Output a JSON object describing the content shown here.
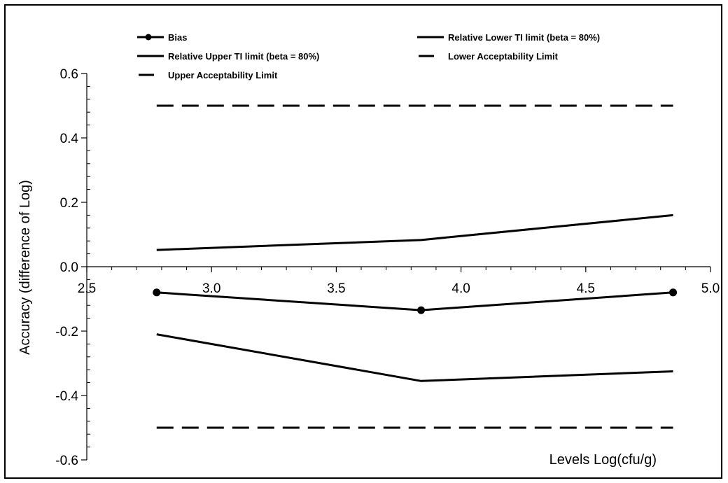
{
  "chart_data": {
    "type": "line",
    "title": "",
    "xlabel": "Levels Log(cfu/g)",
    "ylabel": "Accuracy (difference of  Log)",
    "xlim": [
      2.5,
      5.0
    ],
    "ylim": [
      -0.6,
      0.6
    ],
    "x_ticks": [
      "2.5",
      "3.0",
      "3.5",
      "4.0",
      "4.5",
      "5.0"
    ],
    "y_ticks": [
      "-0.6",
      "-0.4",
      "-0.2",
      "0.0",
      "0.2",
      "0.4",
      "0.6"
    ],
    "grid": false,
    "legend_position": "top",
    "series": [
      {
        "name": "Bias",
        "style": "solid-marker",
        "x": [
          2.78,
          3.84,
          4.85
        ],
        "y": [
          -0.08,
          -0.135,
          -0.08
        ]
      },
      {
        "name": "Relative Lower TI limit (beta = 80%)",
        "style": "solid",
        "x": [
          2.78,
          3.84,
          4.85
        ],
        "y": [
          -0.21,
          -0.355,
          -0.325
        ]
      },
      {
        "name": "Relative Upper TI limit (beta = 80%)",
        "style": "solid",
        "x": [
          2.78,
          3.84,
          4.85
        ],
        "y": [
          0.052,
          0.083,
          0.16
        ]
      },
      {
        "name": "Lower Acceptability Limit",
        "style": "dashed",
        "x": [
          2.78,
          4.85
        ],
        "y": [
          -0.5,
          -0.5
        ]
      },
      {
        "name": "Upper Acceptability Limit",
        "style": "dashed",
        "x": [
          2.78,
          4.85
        ],
        "y": [
          0.5,
          0.5
        ]
      }
    ]
  }
}
